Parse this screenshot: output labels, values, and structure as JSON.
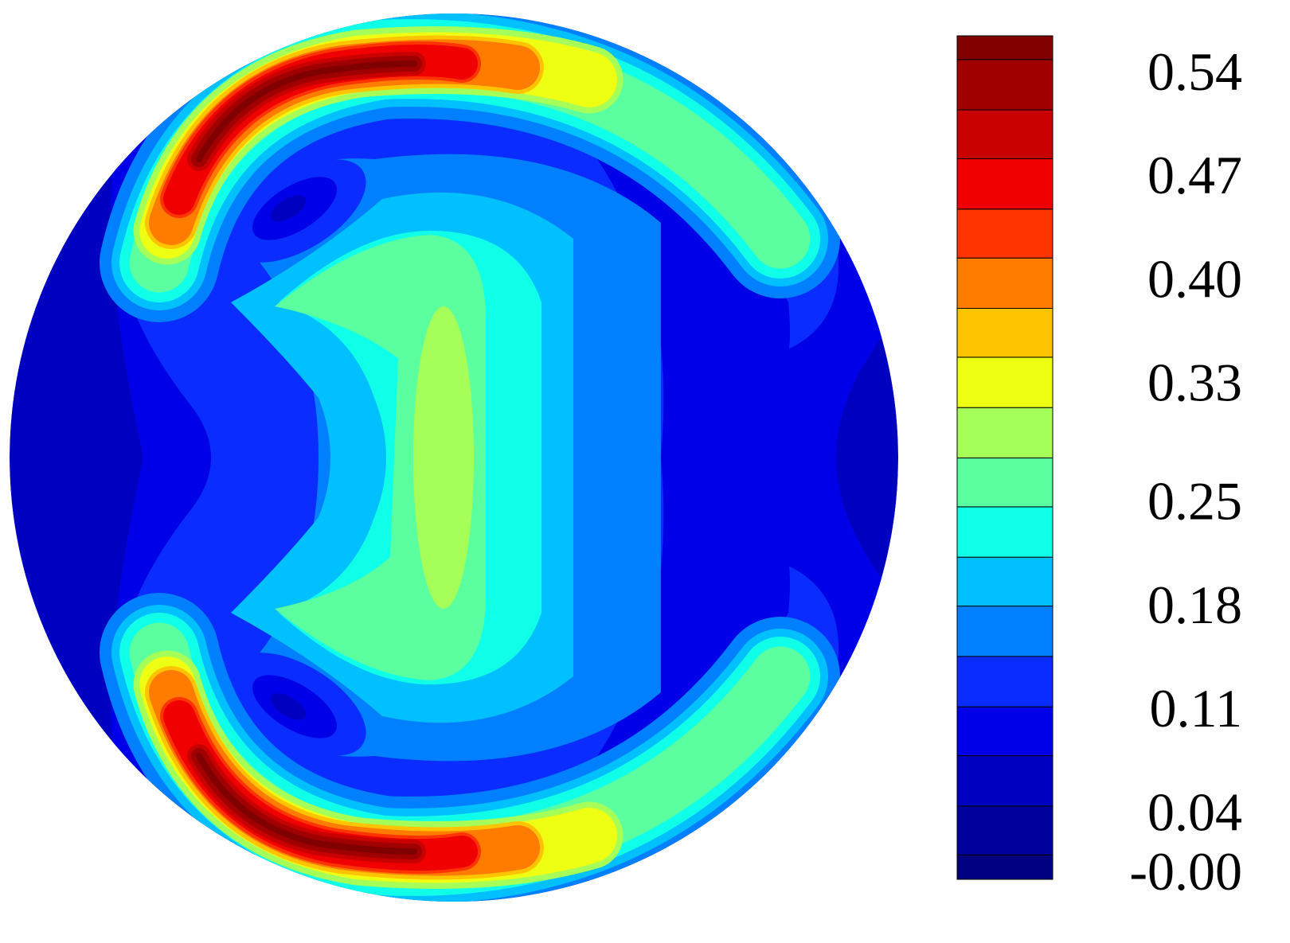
{
  "chart_data": {
    "type": "contour",
    "zlim": [
      -0.0025,
      0.567
    ],
    "levels": [
      0.014,
      0.047,
      0.081,
      0.114,
      0.148,
      0.182,
      0.215,
      0.249,
      0.282,
      0.316,
      0.35,
      0.383,
      0.417,
      0.45,
      0.484,
      0.517,
      0.551
    ],
    "colors": [
      "#000080",
      "#00009c",
      "#0000c0",
      "#0000e8",
      "#0a2cff",
      "#0080ff",
      "#00c0ff",
      "#10ffe8",
      "#5cffa0",
      "#a6ff58",
      "#eeff14",
      "#ffc400",
      "#ff7c00",
      "#ff3400",
      "#f00000",
      "#c80000",
      "#a00000",
      "#800000"
    ],
    "zticks": [
      {
        "value": 0,
        "label": "-0.00"
      },
      0.04,
      0.11,
      0.18,
      0.25,
      0.33,
      {
        "value": 0.4,
        "label": "0.40"
      },
      0.47,
      0.54
    ]
  }
}
